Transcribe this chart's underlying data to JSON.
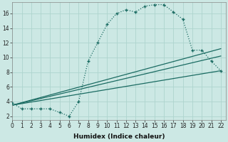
{
  "xlabel": "Humidex (Indice chaleur)",
  "bg_color": "#cce8e4",
  "line_color": "#1a6b62",
  "xlim": [
    0,
    22.5
  ],
  "ylim": [
    1.5,
    17.5
  ],
  "xticks": [
    0,
    1,
    2,
    3,
    4,
    5,
    6,
    7,
    8,
    9,
    10,
    11,
    12,
    13,
    14,
    15,
    16,
    17,
    18,
    19,
    20,
    21,
    22
  ],
  "yticks": [
    2,
    4,
    6,
    8,
    10,
    12,
    14,
    16
  ],
  "main_line_x": [
    0,
    1,
    2,
    3,
    4,
    5,
    6,
    7,
    8,
    9,
    10,
    11,
    12,
    13,
    14,
    15,
    16,
    17,
    18,
    19,
    20,
    21,
    22
  ],
  "main_line_y": [
    3.8,
    3.0,
    3.0,
    3.0,
    3.0,
    2.5,
    2.0,
    4.0,
    9.5,
    12.0,
    14.5,
    16.0,
    16.5,
    16.2,
    17.0,
    17.2,
    17.2,
    16.2,
    15.2,
    11.0,
    11.0,
    9.5,
    8.2
  ],
  "line2_x": [
    0,
    22
  ],
  "line2_y": [
    3.5,
    11.2
  ],
  "line3_x": [
    0,
    22
  ],
  "line3_y": [
    3.5,
    10.2
  ],
  "line4_x": [
    0,
    22
  ],
  "line4_y": [
    3.5,
    8.2
  ],
  "grid_color": "#aed4ce",
  "xlabel_fontsize": 6.5,
  "tick_fontsize": 5.5
}
